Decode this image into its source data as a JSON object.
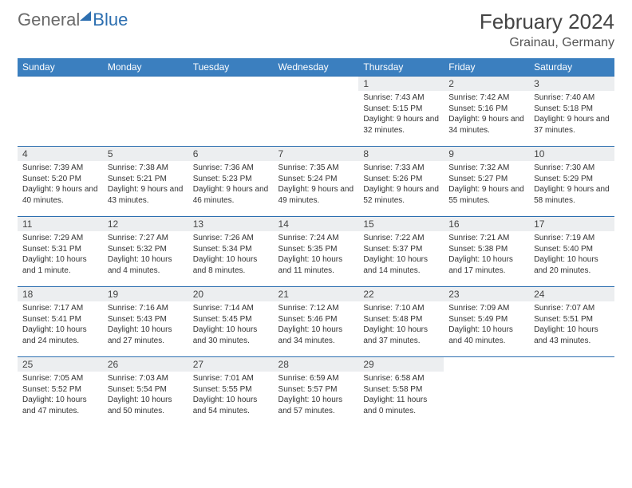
{
  "brand": {
    "part1": "General",
    "part2": "Blue"
  },
  "title": "February 2024",
  "location": "Grainau, Germany",
  "colors": {
    "headerBg": "#3b7fbf",
    "headerText": "#ffffff",
    "rowBorder": "#2d6fb0",
    "dayNumBg": "#eceef0",
    "brandGray": "#6a6a6a",
    "brandBlue": "#2d6fb0"
  },
  "dayNames": [
    "Sunday",
    "Monday",
    "Tuesday",
    "Wednesday",
    "Thursday",
    "Friday",
    "Saturday"
  ],
  "weeks": [
    [
      {
        "day": "",
        "sunrise": "",
        "sunset": "",
        "daylight": ""
      },
      {
        "day": "",
        "sunrise": "",
        "sunset": "",
        "daylight": ""
      },
      {
        "day": "",
        "sunrise": "",
        "sunset": "",
        "daylight": ""
      },
      {
        "day": "",
        "sunrise": "",
        "sunset": "",
        "daylight": ""
      },
      {
        "day": "1",
        "sunrise": "Sunrise: 7:43 AM",
        "sunset": "Sunset: 5:15 PM",
        "daylight": "Daylight: 9 hours and 32 minutes."
      },
      {
        "day": "2",
        "sunrise": "Sunrise: 7:42 AM",
        "sunset": "Sunset: 5:16 PM",
        "daylight": "Daylight: 9 hours and 34 minutes."
      },
      {
        "day": "3",
        "sunrise": "Sunrise: 7:40 AM",
        "sunset": "Sunset: 5:18 PM",
        "daylight": "Daylight: 9 hours and 37 minutes."
      }
    ],
    [
      {
        "day": "4",
        "sunrise": "Sunrise: 7:39 AM",
        "sunset": "Sunset: 5:20 PM",
        "daylight": "Daylight: 9 hours and 40 minutes."
      },
      {
        "day": "5",
        "sunrise": "Sunrise: 7:38 AM",
        "sunset": "Sunset: 5:21 PM",
        "daylight": "Daylight: 9 hours and 43 minutes."
      },
      {
        "day": "6",
        "sunrise": "Sunrise: 7:36 AM",
        "sunset": "Sunset: 5:23 PM",
        "daylight": "Daylight: 9 hours and 46 minutes."
      },
      {
        "day": "7",
        "sunrise": "Sunrise: 7:35 AM",
        "sunset": "Sunset: 5:24 PM",
        "daylight": "Daylight: 9 hours and 49 minutes."
      },
      {
        "day": "8",
        "sunrise": "Sunrise: 7:33 AM",
        "sunset": "Sunset: 5:26 PM",
        "daylight": "Daylight: 9 hours and 52 minutes."
      },
      {
        "day": "9",
        "sunrise": "Sunrise: 7:32 AM",
        "sunset": "Sunset: 5:27 PM",
        "daylight": "Daylight: 9 hours and 55 minutes."
      },
      {
        "day": "10",
        "sunrise": "Sunrise: 7:30 AM",
        "sunset": "Sunset: 5:29 PM",
        "daylight": "Daylight: 9 hours and 58 minutes."
      }
    ],
    [
      {
        "day": "11",
        "sunrise": "Sunrise: 7:29 AM",
        "sunset": "Sunset: 5:31 PM",
        "daylight": "Daylight: 10 hours and 1 minute."
      },
      {
        "day": "12",
        "sunrise": "Sunrise: 7:27 AM",
        "sunset": "Sunset: 5:32 PM",
        "daylight": "Daylight: 10 hours and 4 minutes."
      },
      {
        "day": "13",
        "sunrise": "Sunrise: 7:26 AM",
        "sunset": "Sunset: 5:34 PM",
        "daylight": "Daylight: 10 hours and 8 minutes."
      },
      {
        "day": "14",
        "sunrise": "Sunrise: 7:24 AM",
        "sunset": "Sunset: 5:35 PM",
        "daylight": "Daylight: 10 hours and 11 minutes."
      },
      {
        "day": "15",
        "sunrise": "Sunrise: 7:22 AM",
        "sunset": "Sunset: 5:37 PM",
        "daylight": "Daylight: 10 hours and 14 minutes."
      },
      {
        "day": "16",
        "sunrise": "Sunrise: 7:21 AM",
        "sunset": "Sunset: 5:38 PM",
        "daylight": "Daylight: 10 hours and 17 minutes."
      },
      {
        "day": "17",
        "sunrise": "Sunrise: 7:19 AM",
        "sunset": "Sunset: 5:40 PM",
        "daylight": "Daylight: 10 hours and 20 minutes."
      }
    ],
    [
      {
        "day": "18",
        "sunrise": "Sunrise: 7:17 AM",
        "sunset": "Sunset: 5:41 PM",
        "daylight": "Daylight: 10 hours and 24 minutes."
      },
      {
        "day": "19",
        "sunrise": "Sunrise: 7:16 AM",
        "sunset": "Sunset: 5:43 PM",
        "daylight": "Daylight: 10 hours and 27 minutes."
      },
      {
        "day": "20",
        "sunrise": "Sunrise: 7:14 AM",
        "sunset": "Sunset: 5:45 PM",
        "daylight": "Daylight: 10 hours and 30 minutes."
      },
      {
        "day": "21",
        "sunrise": "Sunrise: 7:12 AM",
        "sunset": "Sunset: 5:46 PM",
        "daylight": "Daylight: 10 hours and 34 minutes."
      },
      {
        "day": "22",
        "sunrise": "Sunrise: 7:10 AM",
        "sunset": "Sunset: 5:48 PM",
        "daylight": "Daylight: 10 hours and 37 minutes."
      },
      {
        "day": "23",
        "sunrise": "Sunrise: 7:09 AM",
        "sunset": "Sunset: 5:49 PM",
        "daylight": "Daylight: 10 hours and 40 minutes."
      },
      {
        "day": "24",
        "sunrise": "Sunrise: 7:07 AM",
        "sunset": "Sunset: 5:51 PM",
        "daylight": "Daylight: 10 hours and 43 minutes."
      }
    ],
    [
      {
        "day": "25",
        "sunrise": "Sunrise: 7:05 AM",
        "sunset": "Sunset: 5:52 PM",
        "daylight": "Daylight: 10 hours and 47 minutes."
      },
      {
        "day": "26",
        "sunrise": "Sunrise: 7:03 AM",
        "sunset": "Sunset: 5:54 PM",
        "daylight": "Daylight: 10 hours and 50 minutes."
      },
      {
        "day": "27",
        "sunrise": "Sunrise: 7:01 AM",
        "sunset": "Sunset: 5:55 PM",
        "daylight": "Daylight: 10 hours and 54 minutes."
      },
      {
        "day": "28",
        "sunrise": "Sunrise: 6:59 AM",
        "sunset": "Sunset: 5:57 PM",
        "daylight": "Daylight: 10 hours and 57 minutes."
      },
      {
        "day": "29",
        "sunrise": "Sunrise: 6:58 AM",
        "sunset": "Sunset: 5:58 PM",
        "daylight": "Daylight: 11 hours and 0 minutes."
      },
      {
        "day": "",
        "sunrise": "",
        "sunset": "",
        "daylight": ""
      },
      {
        "day": "",
        "sunrise": "",
        "sunset": "",
        "daylight": ""
      }
    ]
  ]
}
